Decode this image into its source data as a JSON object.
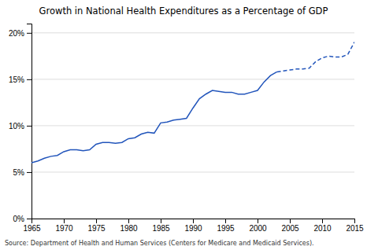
{
  "chart_data": {
    "type": "line",
    "title": "Growth in National Health Expenditures as a Percentage of GDP",
    "annotations": [
      "Source: Department of Health and Human Services (Centers for Medicare and Medicaid Services)."
    ],
    "x": [
      1965,
      1966,
      1967,
      1968,
      1969,
      1970,
      1971,
      1972,
      1973,
      1974,
      1975,
      1976,
      1977,
      1978,
      1979,
      1980,
      1981,
      1982,
      1983,
      1984,
      1985,
      1986,
      1987,
      1988,
      1989,
      1990,
      1991,
      1992,
      1993,
      1994,
      1995,
      1996,
      1997,
      1998,
      1999,
      2000,
      2001,
      2002,
      2003,
      2004,
      2005,
      2006,
      2007,
      2008,
      2009,
      2010,
      2011,
      2012,
      2013,
      2014,
      2015
    ],
    "series": [
      {
        "color": "#2255bb",
        "line_style": "solid",
        "values": [
          0.06,
          0.062,
          0.065,
          0.067,
          0.068,
          0.072,
          0.074,
          0.074,
          0.073,
          0.074,
          0.08,
          0.082,
          0.082,
          0.081,
          0.082,
          0.086,
          0.087,
          0.091,
          0.093,
          0.092,
          0.103,
          0.104,
          0.106,
          0.107,
          0.108,
          0.119,
          0.129,
          0.134,
          0.138,
          0.137,
          0.136,
          0.136,
          0.134,
          0.134,
          0.136,
          0.138,
          0.147,
          0.154,
          0.158,
          null,
          null,
          null,
          null,
          null,
          null,
          null,
          null,
          null,
          null,
          null,
          null
        ]
      },
      {
        "color": "#2255bb",
        "line_style": "dashed",
        "values": [
          null,
          null,
          null,
          null,
          null,
          null,
          null,
          null,
          null,
          null,
          null,
          null,
          null,
          null,
          null,
          null,
          null,
          null,
          null,
          null,
          null,
          null,
          null,
          null,
          null,
          null,
          null,
          null,
          null,
          null,
          null,
          null,
          null,
          null,
          null,
          null,
          null,
          null,
          0.158,
          0.159,
          0.16,
          0.161,
          0.161,
          0.162,
          0.169,
          0.173,
          0.175,
          0.174,
          0.174,
          0.177,
          0.19
        ]
      }
    ],
    "xlim": [
      1965,
      2015
    ],
    "xticks": [
      1965,
      1970,
      1975,
      1980,
      1985,
      1990,
      1995,
      2000,
      2005,
      2010,
      2015
    ],
    "ylim": [
      0,
      0.21
    ],
    "yticks": [
      {
        "value": 0,
        "label": "0%"
      },
      {
        "value": 0.05,
        "label": "5%"
      },
      {
        "value": 0.1,
        "label": "10%"
      },
      {
        "value": 0.15,
        "label": "15%"
      },
      {
        "value": 0.2,
        "label": "20%"
      }
    ],
    "grid": true
  }
}
